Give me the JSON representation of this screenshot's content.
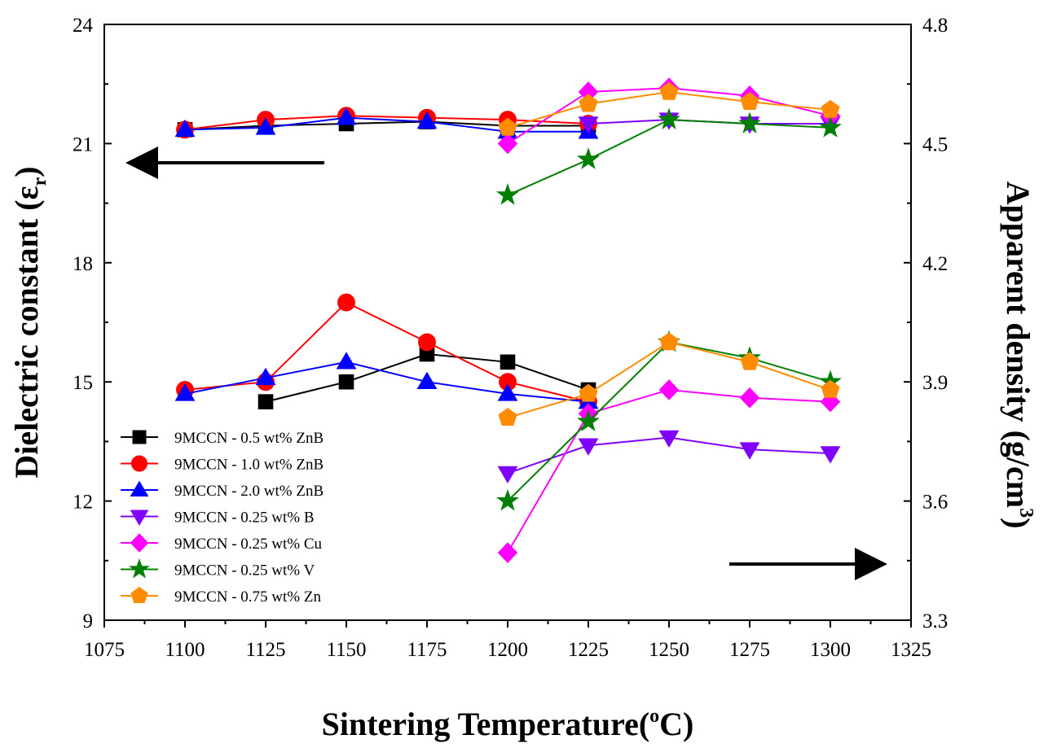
{
  "chart_data": {
    "type": "line",
    "xlabel": "Sintering Temperature(",
    "xlabel_sup": "o",
    "xlabel_tail": "C)",
    "ylabel": "Dielectric constant (ε",
    "ylabel_sub": "r",
    "ylabel_tail": ")",
    "y2label": "Apparent density (g/cm",
    "y2label_sup": "3",
    "y2label_tail": ")",
    "xlim": [
      1075,
      1325
    ],
    "ylim": [
      9,
      24
    ],
    "y2lim": [
      3.3,
      4.8
    ],
    "xticks": [
      "1075",
      "1100",
      "1125",
      "1150",
      "1175",
      "1200",
      "1225",
      "1250",
      "1275",
      "1300",
      "1325"
    ],
    "yticks": [
      "9",
      "12",
      "15",
      "18",
      "21",
      "24"
    ],
    "y2ticks": [
      "3.3",
      "3.6",
      "3.9",
      "4.2",
      "4.5",
      "4.8"
    ],
    "grid": false,
    "legend_position": "lower-left",
    "annotations": [
      {
        "type": "arrow",
        "direction": "left",
        "points_to": "left-axis"
      },
      {
        "type": "arrow",
        "direction": "right",
        "points_to": "right-axis"
      }
    ],
    "series": [
      {
        "name": "9MCCN - 0.5 wt% ZnB",
        "color": "#000000",
        "marker": "square",
        "epsilon": {
          "x": [
            1100,
            1125,
            1150,
            1175,
            1200,
            1225
          ],
          "y": [
            21.35,
            21.45,
            21.5,
            21.55,
            21.45,
            21.45
          ]
        },
        "density": {
          "x": [
            1125,
            1150,
            1175,
            1200,
            1225
          ],
          "y": [
            3.85,
            3.9,
            3.97,
            3.95,
            3.88
          ]
        }
      },
      {
        "name": "9MCCN - 1.0 wt% ZnB",
        "color": "#ff0000",
        "marker": "circle",
        "epsilon": {
          "x": [
            1100,
            1125,
            1150,
            1175,
            1200,
            1225
          ],
          "y": [
            21.35,
            21.6,
            21.7,
            21.65,
            21.6,
            21.5
          ]
        },
        "density": {
          "x": [
            1100,
            1125,
            1150,
            1175,
            1200,
            1225
          ],
          "y": [
            3.88,
            3.9,
            4.1,
            4.0,
            3.9,
            3.85
          ]
        }
      },
      {
        "name": "9MCCN - 2.0 wt% ZnB",
        "color": "#0000ff",
        "marker": "triangle-up",
        "epsilon": {
          "x": [
            1100,
            1125,
            1150,
            1175,
            1200,
            1225
          ],
          "y": [
            21.35,
            21.4,
            21.65,
            21.55,
            21.3,
            21.3
          ]
        },
        "density": {
          "x": [
            1100,
            1125,
            1150,
            1175,
            1200,
            1225
          ],
          "y": [
            3.87,
            3.91,
            3.95,
            3.9,
            3.87,
            3.85
          ]
        }
      },
      {
        "name": "9MCCN - 0.25 wt% B",
        "color": "#8000ff",
        "marker": "triangle-down",
        "epsilon": {
          "x": [
            1225,
            1250,
            1275,
            1300
          ],
          "y": [
            21.5,
            21.6,
            21.5,
            21.5
          ]
        },
        "density": {
          "x": [
            1200,
            1225,
            1250,
            1275,
            1300
          ],
          "y": [
            3.67,
            3.74,
            3.76,
            3.73,
            3.72
          ]
        }
      },
      {
        "name": "9MCCN - 0.25 wt% Cu",
        "color": "#ff00ff",
        "marker": "diamond",
        "epsilon": {
          "x": [
            1200,
            1225,
            1250,
            1275,
            1300
          ],
          "y": [
            21.0,
            22.3,
            22.4,
            22.2,
            21.7
          ]
        },
        "density": {
          "x": [
            1200,
            1225,
            1250,
            1275,
            1300
          ],
          "y": [
            3.47,
            3.82,
            3.88,
            3.86,
            3.85
          ]
        }
      },
      {
        "name": "9MCCN - 0.25 wt% V",
        "color": "#007f00",
        "marker": "star",
        "epsilon": {
          "x": [
            1200,
            1225,
            1250,
            1275,
            1300
          ],
          "y": [
            19.7,
            20.6,
            21.6,
            21.5,
            21.4
          ]
        },
        "density": {
          "x": [
            1200,
            1225,
            1250,
            1275,
            1300
          ],
          "y": [
            3.6,
            3.8,
            4.0,
            3.96,
            3.9
          ]
        }
      },
      {
        "name": "9MCCN - 0.75 wt% Zn",
        "color": "#ff8c00",
        "marker": "pentagon",
        "epsilon": {
          "x": [
            1200,
            1225,
            1250,
            1275,
            1300
          ],
          "y": [
            21.4,
            22.0,
            22.3,
            22.05,
            21.85
          ]
        },
        "density": {
          "x": [
            1200,
            1225,
            1250,
            1275,
            1300
          ],
          "y": [
            3.81,
            3.87,
            4.0,
            3.95,
            3.88
          ]
        }
      }
    ]
  }
}
